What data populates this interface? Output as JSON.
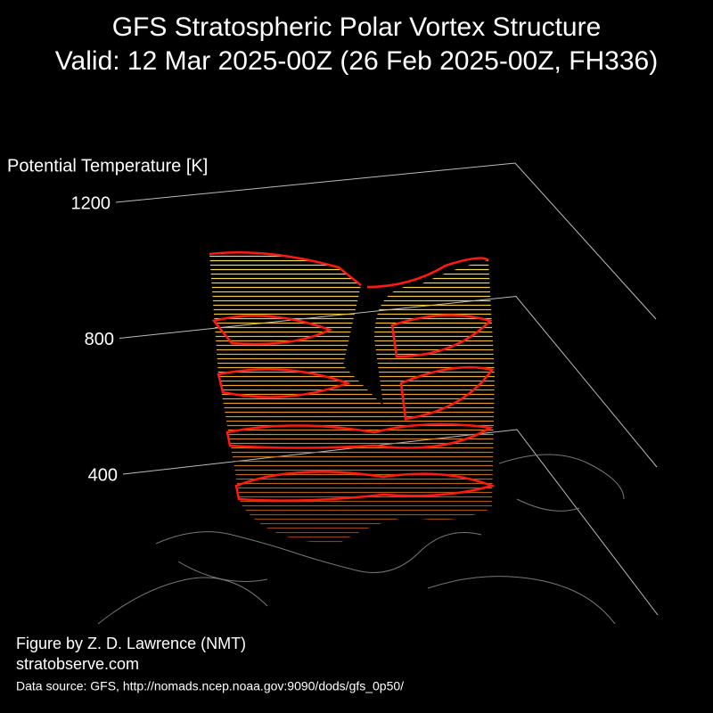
{
  "chart_data": {
    "type": "vortex3d",
    "title": "GFS Stratospheric Polar Vortex Structure",
    "subtitle": "Valid: 12 Mar 2025-00Z  (26 Feb 2025-00Z, FH336)",
    "y_label": "Potential Temperature [K]",
    "ylim": [
      400,
      1200
    ],
    "yticks": [
      400,
      800,
      1200
    ],
    "grid": true,
    "annotations": [
      "Figure by Z. D. Lawrence (NMT)",
      "stratobserve.com",
      "Data source: GFS, http://nomads.ncep.noaa.gov:9090/dods/gfs_0p50/"
    ]
  }
}
